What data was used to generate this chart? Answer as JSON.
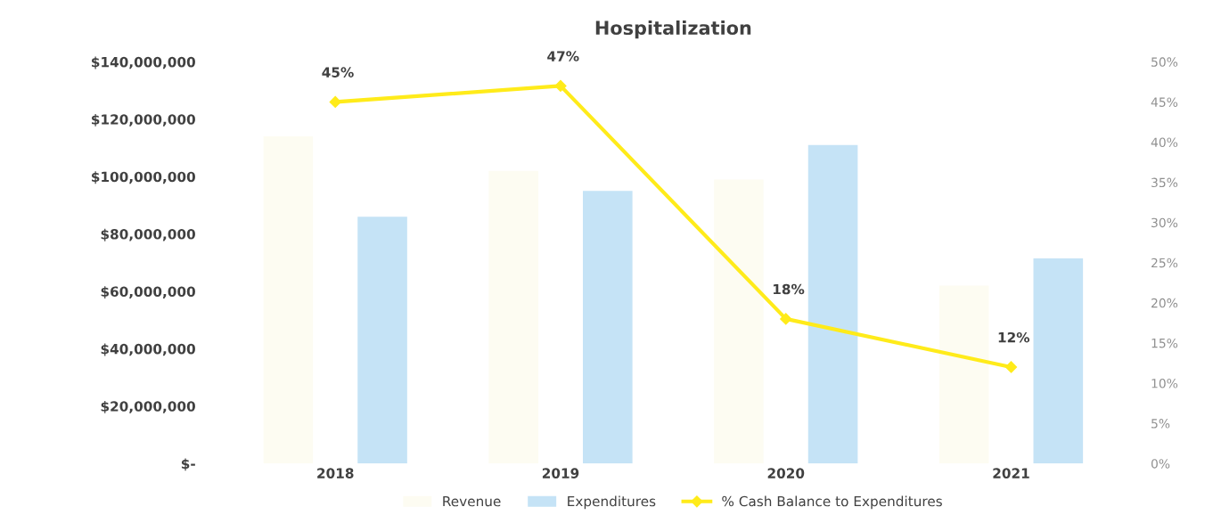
{
  "chart_data": {
    "type": "bar",
    "title": "Hospitalization",
    "categories": [
      "2018",
      "2019",
      "2020",
      "2021"
    ],
    "series": [
      {
        "name": "Revenue",
        "color": "#fdfcf2",
        "values": [
          114000000,
          102000000,
          99000000,
          62000000
        ]
      },
      {
        "name": "Expenditures",
        "color": "#c5e3f6",
        "values": [
          86000000,
          95000000,
          111000000,
          71500000
        ]
      },
      {
        "name": "% Cash Balance to Expenditures",
        "type": "line",
        "axis": "y2",
        "color": "#ffeb1a",
        "marker": "diamond",
        "values": [
          45,
          47,
          18,
          12
        ],
        "value_labels": [
          "45%",
          "47%",
          "18%",
          "12%"
        ]
      }
    ],
    "ylim": [
      0,
      140000000
    ],
    "yticks": [
      {
        "value": 0,
        "label": "$-"
      },
      {
        "value": 20000000,
        "label": "$20,000,000"
      },
      {
        "value": 40000000,
        "label": "$40,000,000"
      },
      {
        "value": 60000000,
        "label": "$60,000,000"
      },
      {
        "value": 80000000,
        "label": "$80,000,000"
      },
      {
        "value": 100000000,
        "label": "$100,000,000"
      },
      {
        "value": 120000000,
        "label": "$120,000,000"
      },
      {
        "value": 140000000,
        "label": "$140,000,000"
      }
    ],
    "y2lim": [
      0,
      50
    ],
    "y2ticks": [
      {
        "value": 0,
        "label": "0%"
      },
      {
        "value": 5,
        "label": "5%"
      },
      {
        "value": 10,
        "label": "10%"
      },
      {
        "value": 15,
        "label": "15%"
      },
      {
        "value": 20,
        "label": "20%"
      },
      {
        "value": 25,
        "label": "25%"
      },
      {
        "value": 30,
        "label": "30%"
      },
      {
        "value": 35,
        "label": "35%"
      },
      {
        "value": 40,
        "label": "40%"
      },
      {
        "value": 45,
        "label": "45%"
      },
      {
        "value": 50,
        "label": "50%"
      }
    ],
    "legend": "bottom",
    "grid": false
  }
}
